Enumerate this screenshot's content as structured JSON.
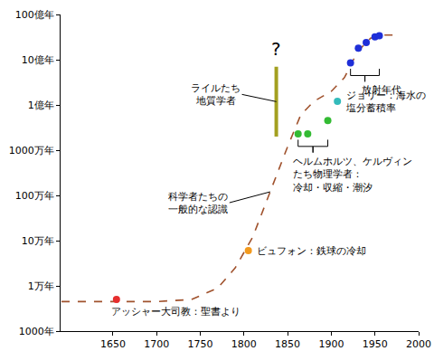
{
  "chart_data": {
    "type": "scatter",
    "log": "y",
    "grid": false,
    "xlim": [
      1590,
      2000
    ],
    "xticks": [
      1650,
      1700,
      1750,
      1800,
      1850,
      1900,
      1950,
      2000
    ],
    "ylim": [
      1000,
      10000000000
    ],
    "yticks": [
      {
        "value": 1000,
        "label": "1000年"
      },
      {
        "value": 10000,
        "label": "1万年"
      },
      {
        "value": 100000,
        "label": "10万年"
      },
      {
        "value": 1000000,
        "label": "100万年"
      },
      {
        "value": 10000000,
        "label": "1000万年"
      },
      {
        "value": 100000000,
        "label": "1億年"
      },
      {
        "value": 1000000000,
        "label": "10億年"
      },
      {
        "value": 10000000000,
        "label": "100億年"
      }
    ],
    "series": [
      {
        "name": "科学者たちの\n一般的な認識",
        "type": "line",
        "line_style": "dashed",
        "color": "#a0522d",
        "x": [
          1591,
          1700,
          1740,
          1770,
          1790,
          1810,
          1830,
          1850,
          1865,
          1880,
          1900,
          1915,
          1930,
          1945,
          1960,
          1975
        ],
        "values": [
          4500,
          4500,
          5000,
          9000,
          25000,
          120000,
          1200000,
          12000000,
          60000000,
          120000000,
          200000000,
          400000000,
          1500000000,
          3000000000,
          3500000000,
          3500000000
        ]
      },
      {
        "name": "アッシャー大司教：聖書より",
        "type": "scatter",
        "marker": "circle",
        "color": "#e62e2e",
        "x": [
          1654
        ],
        "values": [
          5000
        ]
      },
      {
        "name": "ビュフォン：鉄球の冷却",
        "type": "scatter",
        "marker": "circle",
        "color": "#f39a1e",
        "x": [
          1805
        ],
        "values": [
          60000
        ]
      },
      {
        "name": "ライルたち\n地質学者",
        "type": "line",
        "line_style": "solid",
        "color": "#a3a020",
        "x": [
          1837,
          1837
        ],
        "values": [
          20000000,
          700000000
        ]
      },
      {
        "name": "ヘルムホルツ、ケルヴィン\nたち物理学者：\n冷却・収縮・潮汐",
        "type": "scatter",
        "marker": "circle",
        "color": "#33bb33",
        "x": [
          1862,
          1873,
          1896
        ],
        "values": [
          23000000,
          23000000,
          45000000
        ]
      },
      {
        "name": "ジョリー：海水の\n塩分蓄積率",
        "type": "scatter",
        "marker": "circle",
        "color": "#33bbbb",
        "x": [
          1907
        ],
        "values": [
          120000000
        ]
      },
      {
        "name": "放射年代",
        "type": "scatter",
        "marker": "circle",
        "color": "#1f2fd8",
        "x": [
          1922,
          1931,
          1940,
          1950,
          1955
        ],
        "values": [
          850000000,
          1800000000,
          2400000000,
          3200000000,
          3400000000
        ]
      }
    ],
    "annotations": [
      {
        "text": "?",
        "series": "ライルたち\n地質学者"
      }
    ]
  }
}
